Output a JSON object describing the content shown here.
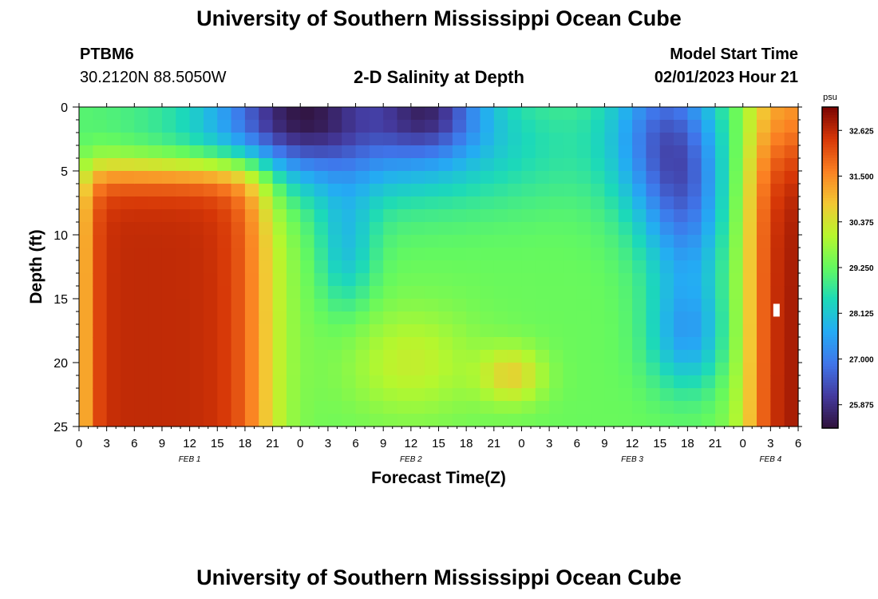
{
  "header": {
    "title": "University of Southern Mississippi Ocean Cube",
    "station_id": "PTBM6",
    "station_coords": "30.2120N  88.5050W",
    "chart_title": "2-D Salinity at Depth",
    "model_start_label": "Model Start Time",
    "model_start_value": "02/01/2023 Hour 21",
    "footer_title": "University of Southern Mississippi Ocean Cube"
  },
  "chart_data": {
    "type": "heatmap",
    "title": "2-D Salinity at Depth",
    "xlabel": "Forecast Time(Z)",
    "ylabel": "Depth (ft)",
    "x_tick_labels": [
      "0",
      "3",
      "6",
      "9",
      "12",
      "15",
      "18",
      "21",
      "0",
      "3",
      "6",
      "9",
      "12",
      "15",
      "18",
      "21",
      "0",
      "3",
      "6",
      "9",
      "12",
      "15",
      "18",
      "21",
      "0",
      "3",
      "6"
    ],
    "x_range_hours": [
      0,
      78
    ],
    "date_labels": [
      {
        "label": "FEB 1",
        "hour": 12
      },
      {
        "label": "FEB 2",
        "hour": 36
      },
      {
        "label": "FEB 3",
        "hour": 60
      },
      {
        "label": "FEB 4",
        "hour": 75
      }
    ],
    "y_ticks": [
      0,
      5,
      10,
      15,
      20,
      25
    ],
    "y_range": [
      0,
      25
    ],
    "y_inverted": true,
    "colorbar": {
      "unit": "psu",
      "min": 25.3,
      "max": 33.2,
      "tick_values": [
        32.625,
        31.5,
        30.375,
        29.25,
        28.125,
        27.0,
        25.875
      ],
      "tick_labels": [
        "32.625",
        "31.500",
        "30.375",
        "29.250",
        "28.125",
        "27.000",
        "25.875"
      ]
    },
    "grid": false
  }
}
